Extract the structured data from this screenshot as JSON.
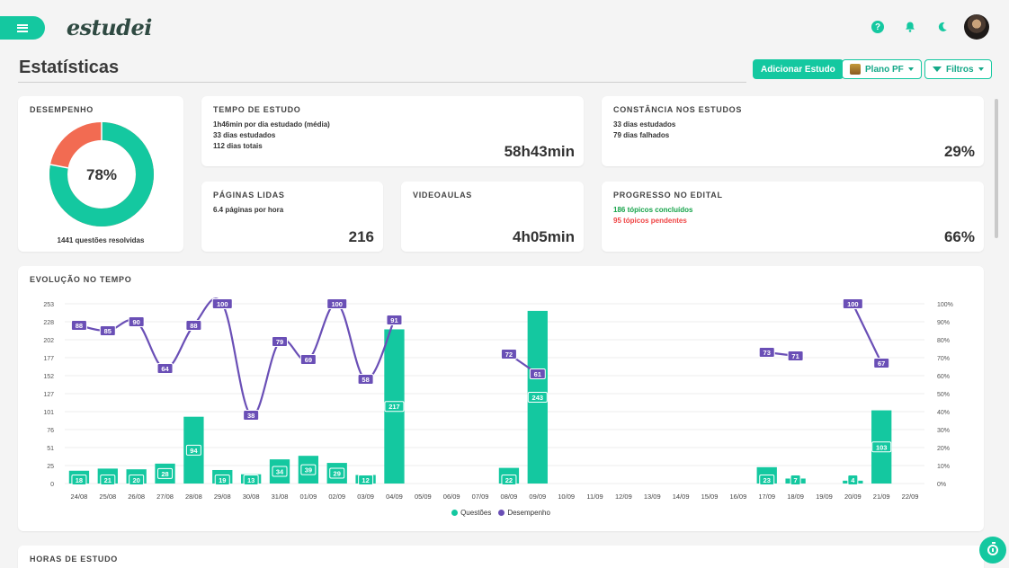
{
  "header": {
    "logo_text": "estudei",
    "icons": [
      "menu-icon",
      "help-icon",
      "bell-icon",
      "moon-icon",
      "user-avatar"
    ]
  },
  "page": {
    "title": "Estatísticas",
    "add_button": "Adicionar Estudo",
    "plan_button": "Plano PF",
    "filter_button": "Filtros"
  },
  "desempenho": {
    "title": "DESEMPENHO",
    "percent_label": "78%",
    "percent": 78,
    "caption": "1441 questões resolvidas",
    "colors": {
      "correct": "#14c8a0",
      "wrong": "#f26b52"
    }
  },
  "tempo": {
    "title": "TEMPO DE ESTUDO",
    "lines": [
      "1h46min por dia estudado (média)",
      "33 dias estudados",
      "112 dias totais"
    ],
    "value": "58h43min"
  },
  "constancia": {
    "title": "CONSTÂNCIA NOS ESTUDOS",
    "lines": [
      "33 dias estudados",
      "79 dias falhados"
    ],
    "value": "29%"
  },
  "paginas": {
    "title": "PÁGINAS LIDAS",
    "lines": [
      "6.4 páginas por hora"
    ],
    "value": "216"
  },
  "videoaulas": {
    "title": "VIDEOAULAS",
    "value": "4h05min"
  },
  "progresso": {
    "title": "PROGRESSO NO EDITAL",
    "done": "186 tópicos concluídos",
    "pending": "95 tópicos pendentes",
    "value": "66%"
  },
  "evolucao": {
    "title": "EVOLUÇÃO NO TEMPO",
    "chart_data": {
      "type": "bar",
      "categories": [
        "24/08",
        "25/08",
        "26/08",
        "27/08",
        "28/08",
        "29/08",
        "30/08",
        "31/08",
        "01/09",
        "02/09",
        "03/09",
        "04/09",
        "05/09",
        "06/09",
        "07/09",
        "08/09",
        "09/09",
        "10/09",
        "11/09",
        "12/09",
        "13/09",
        "14/09",
        "15/09",
        "16/09",
        "17/09",
        "18/09",
        "19/09",
        "20/09",
        "21/09",
        "22/09"
      ],
      "y_left_ticks": [
        "0",
        "25",
        "51",
        "76",
        "101",
        "127",
        "152",
        "177",
        "202",
        "228",
        "253"
      ],
      "y_right_ticks": [
        "0%",
        "10%",
        "20%",
        "30%",
        "40%",
        "50%",
        "60%",
        "70%",
        "80%",
        "90%",
        "100%"
      ],
      "ylim_left": [
        0,
        253
      ],
      "ylim_right": [
        0,
        100
      ],
      "series": [
        {
          "name": "Questões",
          "kind": "bar",
          "color": "#14c8a0",
          "values": [
            18,
            21,
            20,
            28,
            94,
            19,
            13,
            34,
            39,
            29,
            12,
            217,
            null,
            null,
            null,
            22,
            243,
            null,
            null,
            null,
            null,
            null,
            null,
            null,
            23,
            7,
            null,
            4,
            103,
            null
          ]
        },
        {
          "name": "Desempenho",
          "kind": "line",
          "color": "#6a4fb6",
          "values": [
            88,
            85,
            90,
            64,
            88,
            100,
            38,
            79,
            69,
            100,
            58,
            91,
            null,
            null,
            null,
            72,
            61,
            null,
            null,
            null,
            null,
            null,
            null,
            null,
            73,
            71,
            null,
            100,
            67,
            null
          ]
        }
      ]
    }
  },
  "horas": {
    "title": "HORAS DE ESTUDO"
  }
}
